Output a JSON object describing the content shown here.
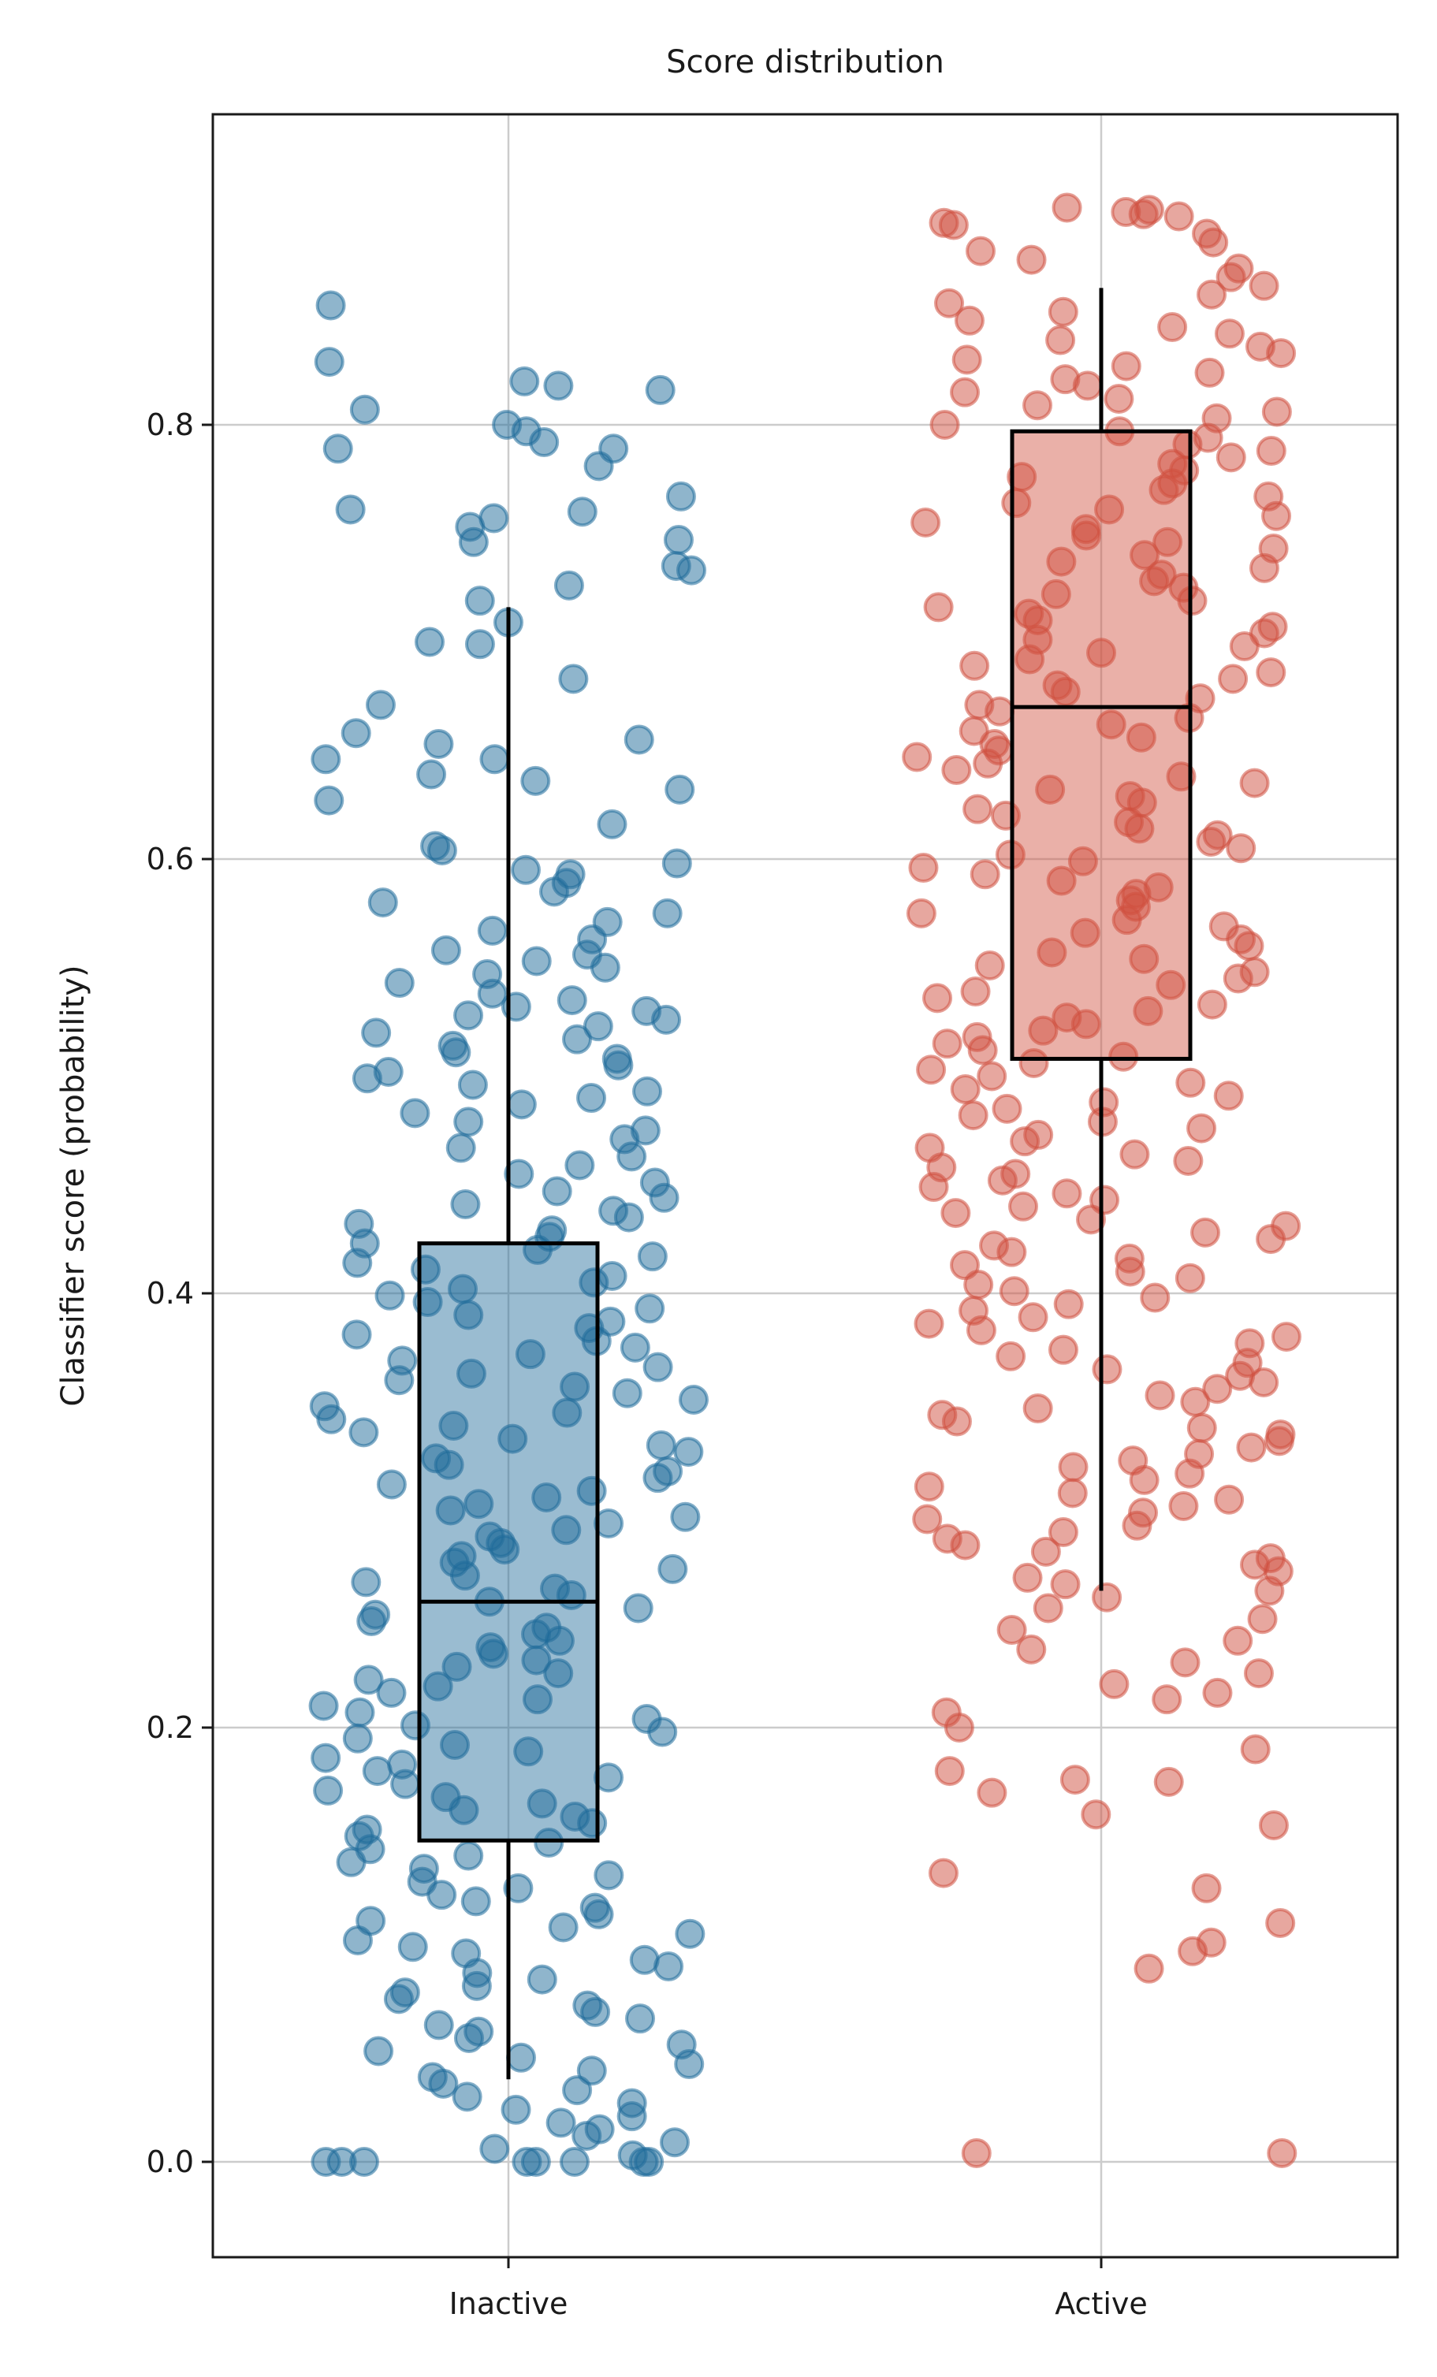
{
  "chart_data": {
    "type": "box",
    "title": "Score distribution",
    "xlabel": "",
    "ylabel": "Classifier score (probability)",
    "ylim": [
      -0.045,
      0.93
    ],
    "yticks": [
      0.0,
      0.2,
      0.4,
      0.6,
      0.8
    ],
    "ytick_labels": [
      "0.0",
      "0.2",
      "0.4",
      "0.6",
      "0.8"
    ],
    "grid": true,
    "categories": [
      "Inactive",
      "Active"
    ],
    "series": [
      {
        "category": "Inactive",
        "color": "#1f6b9a",
        "box": {
          "whisker_low": 0.038,
          "q1": 0.148,
          "median": 0.258,
          "q3": 0.423,
          "whisker_high": 0.716
        },
        "points": [
          0.855,
          0.829,
          0.82,
          0.818,
          0.816,
          0.807,
          0.8,
          0.797,
          0.792,
          0.789,
          0.789,
          0.781,
          0.767,
          0.761,
          0.76,
          0.757,
          0.753,
          0.747,
          0.746,
          0.735,
          0.733,
          0.726,
          0.719,
          0.709,
          0.7,
          0.699,
          0.683,
          0.671,
          0.658,
          0.655,
          0.653,
          0.646,
          0.646,
          0.639,
          0.636,
          0.632,
          0.627,
          0.616,
          0.606,
          0.604,
          0.598,
          0.595,
          0.593,
          0.589,
          0.585,
          0.58,
          0.575,
          0.571,
          0.567,
          0.563,
          0.558,
          0.556,
          0.553,
          0.55,
          0.547,
          0.543,
          0.538,
          0.535,
          0.532,
          0.53,
          0.528,
          0.526,
          0.523,
          0.52,
          0.517,
          0.514,
          0.511,
          0.508,
          0.505,
          0.502,
          0.499,
          0.496,
          0.493,
          0.49,
          0.487,
          0.483,
          0.479,
          0.475,
          0.471,
          0.467,
          0.463,
          0.459,
          0.455,
          0.451,
          0.447,
          0.444,
          0.441,
          0.438,
          0.435,
          0.432,
          0.429,
          0.426,
          0.423,
          0.42,
          0.417,
          0.414,
          0.411,
          0.408,
          0.405,
          0.402,
          0.399,
          0.396,
          0.393,
          0.39,
          0.387,
          0.384,
          0.381,
          0.378,
          0.375,
          0.372,
          0.369,
          0.366,
          0.363,
          0.36,
          0.357,
          0.354,
          0.351,
          0.348,
          0.345,
          0.342,
          0.339,
          0.336,
          0.333,
          0.33,
          0.327,
          0.324,
          0.321,
          0.318,
          0.315,
          0.312,
          0.309,
          0.306,
          0.303,
          0.3,
          0.297,
          0.294,
          0.291,
          0.288,
          0.285,
          0.282,
          0.279,
          0.276,
          0.273,
          0.27,
          0.267,
          0.264,
          0.261,
          0.258,
          0.255,
          0.252,
          0.249,
          0.246,
          0.243,
          0.24,
          0.237,
          0.234,
          0.231,
          0.228,
          0.225,
          0.222,
          0.219,
          0.216,
          0.213,
          0.21,
          0.207,
          0.204,
          0.201,
          0.198,
          0.195,
          0.192,
          0.189,
          0.186,
          0.183,
          0.18,
          0.177,
          0.174,
          0.171,
          0.168,
          0.165,
          0.162,
          0.159,
          0.156,
          0.153,
          0.15,
          0.147,
          0.144,
          0.141,
          0.138,
          0.135,
          0.132,
          0.129,
          0.126,
          0.123,
          0.12,
          0.117,
          0.114,
          0.111,
          0.108,
          0.105,
          0.102,
          0.099,
          0.096,
          0.093,
          0.09,
          0.087,
          0.084,
          0.081,
          0.078,
          0.075,
          0.072,
          0.069,
          0.066,
          0.063,
          0.06,
          0.057,
          0.054,
          0.051,
          0.048,
          0.045,
          0.042,
          0.039,
          0.036,
          0.033,
          0.03,
          0.027,
          0.024,
          0.021,
          0.018,
          0.015,
          0.012,
          0.009,
          0.006,
          0.003,
          0.0,
          0.0,
          0.0,
          0.0,
          0.0,
          0.0,
          0.0,
          0.0
        ]
      },
      {
        "category": "Active",
        "color": "#d0503f",
        "box": {
          "whisker_low": 0.263,
          "q1": 0.508,
          "median": 0.67,
          "q3": 0.797,
          "whisker_high": 0.863
        },
        "points": [
          0.9,
          0.899,
          0.898,
          0.897,
          0.896,
          0.893,
          0.892,
          0.888,
          0.884,
          0.88,
          0.876,
          0.872,
          0.868,
          0.864,
          0.86,
          0.856,
          0.852,
          0.848,
          0.845,
          0.842,
          0.839,
          0.836,
          0.833,
          0.83,
          0.827,
          0.824,
          0.821,
          0.818,
          0.815,
          0.812,
          0.809,
          0.806,
          0.803,
          0.8,
          0.797,
          0.794,
          0.791,
          0.788,
          0.785,
          0.782,
          0.779,
          0.776,
          0.773,
          0.77,
          0.767,
          0.764,
          0.761,
          0.758,
          0.755,
          0.752,
          0.749,
          0.746,
          0.743,
          0.74,
          0.737,
          0.734,
          0.731,
          0.728,
          0.725,
          0.722,
          0.719,
          0.716,
          0.713,
          0.71,
          0.707,
          0.704,
          0.701,
          0.698,
          0.695,
          0.692,
          0.689,
          0.686,
          0.683,
          0.68,
          0.677,
          0.674,
          0.671,
          0.668,
          0.665,
          0.662,
          0.659,
          0.656,
          0.653,
          0.65,
          0.647,
          0.644,
          0.641,
          0.638,
          0.635,
          0.632,
          0.629,
          0.626,
          0.623,
          0.62,
          0.617,
          0.614,
          0.611,
          0.608,
          0.605,
          0.602,
          0.599,
          0.596,
          0.593,
          0.59,
          0.587,
          0.584,
          0.581,
          0.578,
          0.575,
          0.572,
          0.569,
          0.566,
          0.563,
          0.56,
          0.557,
          0.554,
          0.551,
          0.548,
          0.545,
          0.542,
          0.539,
          0.536,
          0.533,
          0.53,
          0.527,
          0.524,
          0.521,
          0.518,
          0.515,
          0.512,
          0.509,
          0.506,
          0.503,
          0.5,
          0.497,
          0.494,
          0.491,
          0.488,
          0.485,
          0.482,
          0.479,
          0.476,
          0.473,
          0.47,
          0.467,
          0.464,
          0.461,
          0.458,
          0.455,
          0.452,
          0.449,
          0.446,
          0.443,
          0.44,
          0.437,
          0.434,
          0.431,
          0.428,
          0.425,
          0.422,
          0.419,
          0.416,
          0.413,
          0.41,
          0.407,
          0.404,
          0.401,
          0.398,
          0.395,
          0.392,
          0.389,
          0.386,
          0.383,
          0.38,
          0.377,
          0.374,
          0.371,
          0.368,
          0.365,
          0.362,
          0.359,
          0.356,
          0.353,
          0.35,
          0.347,
          0.344,
          0.341,
          0.338,
          0.335,
          0.332,
          0.329,
          0.326,
          0.323,
          0.32,
          0.317,
          0.314,
          0.311,
          0.308,
          0.305,
          0.302,
          0.299,
          0.296,
          0.293,
          0.29,
          0.287,
          0.284,
          0.281,
          0.278,
          0.275,
          0.272,
          0.269,
          0.266,
          0.263,
          0.26,
          0.255,
          0.25,
          0.245,
          0.24,
          0.236,
          0.23,
          0.225,
          0.22,
          0.216,
          0.213,
          0.207,
          0.2,
          0.19,
          0.18,
          0.176,
          0.175,
          0.17,
          0.16,
          0.155,
          0.133,
          0.126,
          0.11,
          0.101,
          0.097,
          0.089,
          0.004,
          0.004
        ]
      }
    ]
  }
}
